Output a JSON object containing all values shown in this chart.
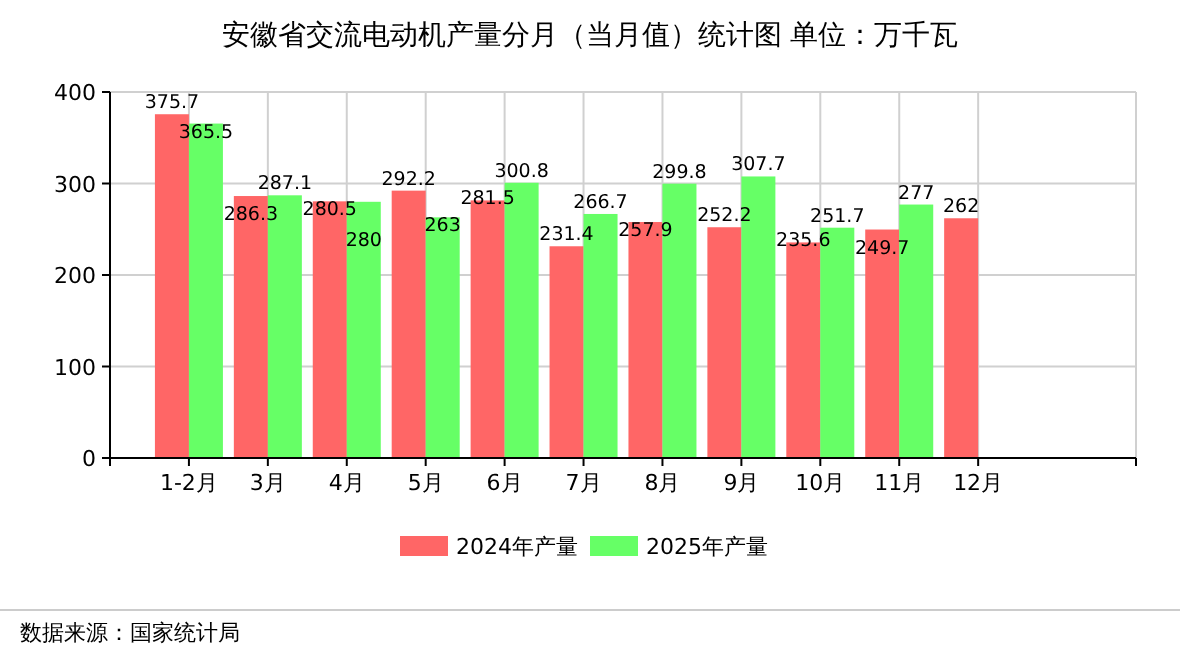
{
  "chart_data": {
    "type": "bar",
    "title": "安徽省交流电动机产量分月（当月值）统计图 单位：万千瓦",
    "categories": [
      "1-2月",
      "3月",
      "4月",
      "5月",
      "6月",
      "7月",
      "8月",
      "9月",
      "10月",
      "11月",
      "12月"
    ],
    "series": [
      {
        "name": "2024年产量",
        "color": "#ff6666",
        "values": [
          375.7,
          286.3,
          280.5,
          292.2,
          281.5,
          231.4,
          257.9,
          252.2,
          235.6,
          249.7,
          262
        ]
      },
      {
        "name": "2025年产量",
        "color": "#66ff66",
        "values": [
          365.5,
          287.1,
          280,
          263,
          300.8,
          266.7,
          299.8,
          307.7,
          251.7,
          277,
          null
        ]
      }
    ],
    "ylim": [
      0,
      400
    ],
    "yticks": [
      0,
      100,
      200,
      300,
      400
    ],
    "grid": true,
    "legend": "bottom",
    "data_labels": true,
    "annotations": [
      "数据来源：国家统计局"
    ]
  }
}
